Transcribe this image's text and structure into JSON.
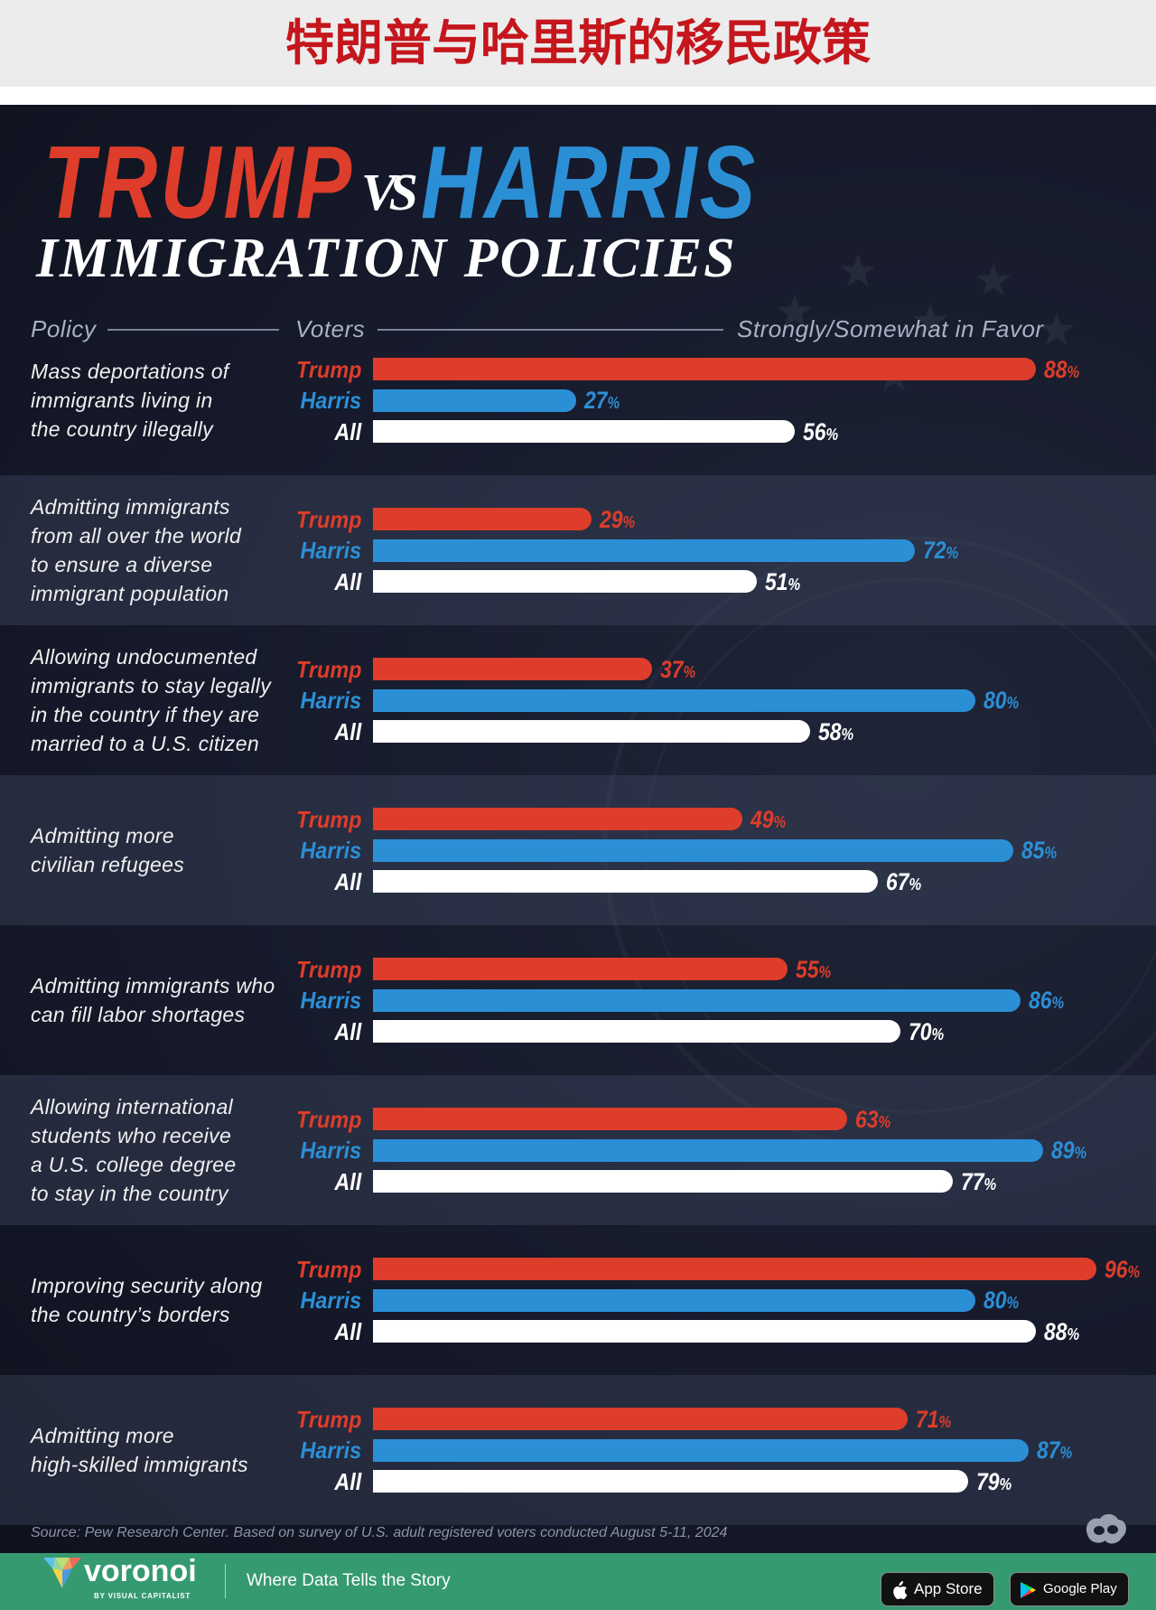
{
  "banner": {
    "title": "特朗普与哈里斯的移民政策"
  },
  "colors": {
    "trump": "#dd3d2a",
    "harris": "#2b8fd6",
    "banner_title": "#c4161c",
    "footer_green": "#369a71"
  },
  "chart_data": {
    "type": "bar",
    "orientation": "horizontal",
    "title_parts": [
      "TRUMP",
      "VS",
      "HARRIS"
    ],
    "subtitle": "IMMIGRATION POLICIES",
    "categories_header": "Policy",
    "series_header": "Voters",
    "xlabel": "Strongly/Somewhat in Favor",
    "unit": "%",
    "xlim": [
      0,
      100
    ],
    "grid": false,
    "categories": [
      "Mass deportations of\nimmigrants living in\nthe country illegally",
      "Admitting immigrants\nfrom all over the world\nto ensure a diverse\nimmigrant population",
      "Allowing undocumented\nimmigrants to stay legally\nin the country if they are\nmarried to a U.S. citizen",
      "Admitting more\ncivilian refugees",
      "Admitting immigrants who\ncan fill labor shortages",
      "Allowing international\nstudents who receive\na U.S. college degree\nto stay in the country",
      "Improving security along\nthe country’s borders",
      "Admitting more\nhigh-skilled immigrants"
    ],
    "series": [
      {
        "name": "Trump",
        "color": "#dd3d2a",
        "values": [
          88,
          29,
          37,
          49,
          55,
          63,
          96,
          71
        ]
      },
      {
        "name": "Harris",
        "color": "#2b8fd6",
        "values": [
          27,
          72,
          80,
          85,
          86,
          89,
          80,
          87
        ]
      },
      {
        "name": "All",
        "color": "#ffffff",
        "values": [
          56,
          51,
          58,
          67,
          70,
          77,
          88,
          79
        ]
      }
    ],
    "source": "Source: Pew Research Center. Based on survey of U.S. adult registered voters conducted August 5-11, 2024"
  },
  "footer": {
    "brand": "voronoi",
    "brand_sub": "BY VISUAL CAPITALIST",
    "tagline": "Where Data Tells the Story",
    "app_store": "App Store",
    "google_play": "Google Play"
  }
}
